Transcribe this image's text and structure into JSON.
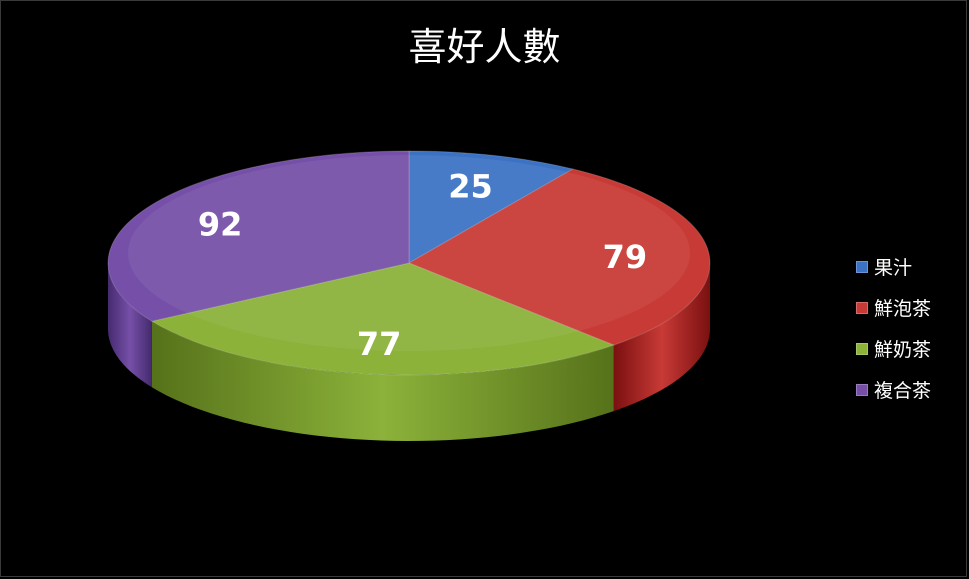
{
  "chart_data": {
    "type": "pie",
    "style": "3d",
    "title": "喜好人數",
    "categories": [
      "果汁",
      "鮮泡茶",
      "鮮奶茶",
      "複合茶"
    ],
    "values": [
      25,
      79,
      77,
      92
    ],
    "data_labels": [
      "25",
      "79",
      "77",
      "92"
    ],
    "colors": [
      "#3c72c4",
      "#c83a36",
      "#8cb23a",
      "#7650a8"
    ],
    "side_colors": [
      "#1e3f78",
      "#7a1010",
      "#56721a",
      "#452a6e"
    ],
    "legend_position": "right",
    "background": "#000000"
  }
}
